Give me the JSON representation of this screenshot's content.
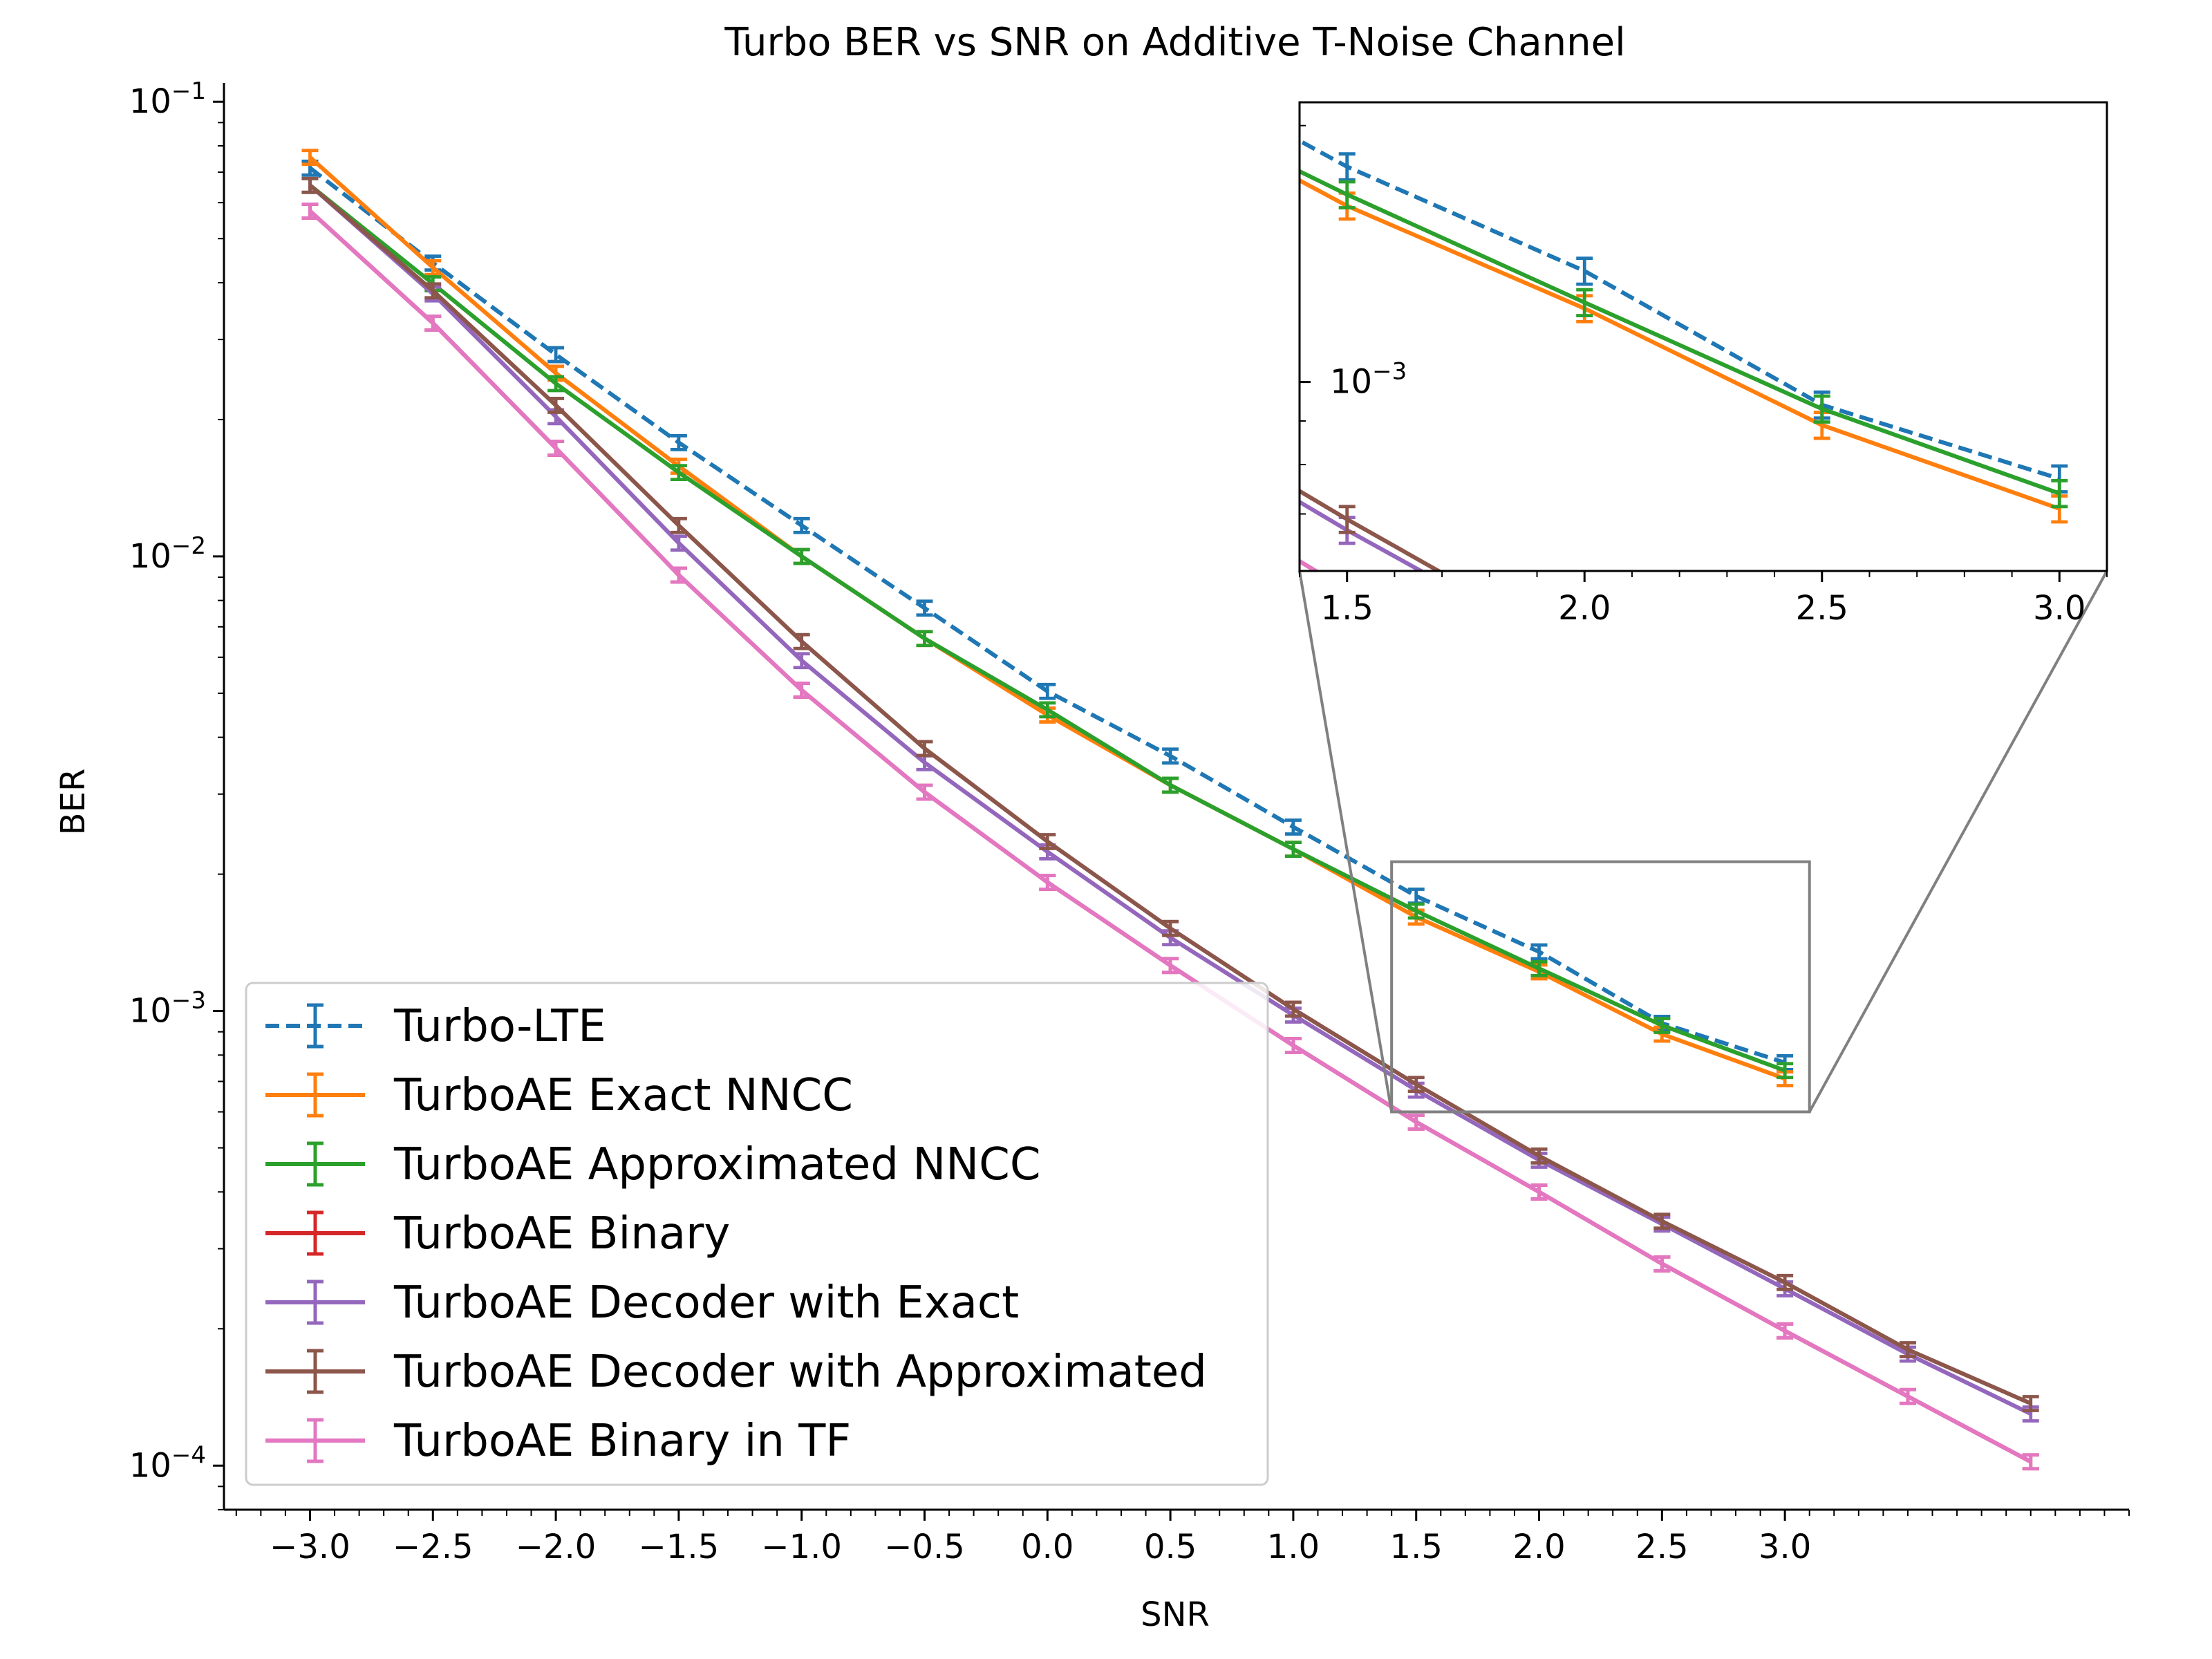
{
  "chart_data": {
    "type": "line",
    "title": "Turbo BER vs SNR on Additive T-Noise Channel",
    "xlabel": "SNR",
    "ylabel": "BER",
    "yscale": "log",
    "xlim": [
      -3.35,
      4.4
    ],
    "ylim": [
      8e-05,
      0.11
    ],
    "x_ticks": [
      -3.0,
      -2.5,
      -2.0,
      -1.5,
      -1.0,
      -0.5,
      0.0,
      0.5,
      1.0,
      1.5,
      2.0,
      2.5,
      3.0
    ],
    "x_tick_labels": [
      "−3.0",
      "−2.5",
      "−2.0",
      "−1.5",
      "−1.0",
      "−0.5",
      "0.0",
      "0.5",
      "1.0",
      "1.5",
      "2.0",
      "2.5",
      "3.0"
    ],
    "y_ticks": [
      0.1,
      0.01,
      0.001,
      0.0001
    ],
    "y_tick_exponents": [
      "−1",
      "−2",
      "−3",
      "−4"
    ],
    "y_tick_base": "10",
    "grid": false,
    "legend_position": "bottom-left",
    "series": [
      {
        "name": "Turbo-LTE",
        "color": "#1f77b4",
        "dashed": true,
        "x": [
          -3.0,
          -2.5,
          -2.0,
          -1.5,
          -1.0,
          -0.5,
          0.0,
          0.5,
          1.0,
          1.5,
          2.0,
          2.5,
          3.0
        ],
        "values": [
          0.0715,
          0.0442,
          0.0278,
          0.0178,
          0.0117,
          0.0077,
          0.00505,
          0.00364,
          0.00254,
          0.00179,
          0.00135,
          0.00094,
          0.00077
        ]
      },
      {
        "name": "TurboAE Exact NNCC",
        "color": "#ff7f0e",
        "dashed": false,
        "x": [
          -3.0,
          -2.5,
          -2.0,
          -1.5,
          -1.0,
          -0.5,
          0.0,
          0.5,
          1.0,
          1.5,
          2.0,
          2.5,
          3.0
        ],
        "values": [
          0.0755,
          0.0432,
          0.0253,
          0.0158,
          0.01,
          0.0066,
          0.00448,
          0.00314,
          0.00227,
          0.00161,
          0.00122,
          0.00089,
          0.00071
        ]
      },
      {
        "name": "TurboAE Approximated NNCC",
        "color": "#2ca02c",
        "dashed": false,
        "x": [
          -3.0,
          -2.5,
          -2.0,
          -1.5,
          -1.0,
          -0.5,
          0.0,
          0.5,
          1.0,
          1.5,
          2.0,
          2.5,
          3.0
        ],
        "values": [
          0.0655,
          0.0398,
          0.024,
          0.0153,
          0.01,
          0.0066,
          0.0046,
          0.00314,
          0.00227,
          0.00166,
          0.00124,
          0.00093,
          0.00074
        ]
      },
      {
        "name": "TurboAE Binary",
        "color": "#d62728",
        "dashed": false,
        "x": [
          -3.0,
          -2.5,
          -2.0,
          -1.5,
          -1.0,
          -0.5,
          0.0,
          0.5,
          1.0,
          1.5,
          2.0,
          2.5,
          3.0,
          3.5,
          4.0
        ],
        "values": [
          0.0575,
          0.0326,
          0.0173,
          0.0091,
          0.00508,
          0.00303,
          0.00192,
          0.00126,
          0.00084,
          0.00057,
          0.0004,
          0.000278,
          0.000198,
          0.000142,
          0.000102
        ]
      },
      {
        "name": "TurboAE Decoder with Exact",
        "color": "#9467bd",
        "dashed": false,
        "x": [
          -3.0,
          -2.5,
          -2.0,
          -1.5,
          -1.0,
          -0.5,
          0.0,
          0.5,
          1.0,
          1.5,
          2.0,
          2.5,
          3.0,
          3.5,
          4.0
        ],
        "values": [
          0.0655,
          0.0378,
          0.0203,
          0.0107,
          0.0059,
          0.00352,
          0.00224,
          0.00145,
          0.00098,
          0.00067,
          0.00047,
          0.00034,
          0.000245,
          0.000176,
          0.00013
        ]
      },
      {
        "name": "TurboAE Decoder with Approximated",
        "color": "#8c564b",
        "dashed": false,
        "x": [
          -3.0,
          -2.5,
          -2.0,
          -1.5,
          -1.0,
          -0.5,
          0.0,
          0.5,
          1.0,
          1.5,
          2.0,
          2.5,
          3.0,
          3.5,
          4.0
        ],
        "values": [
          0.0655,
          0.0384,
          0.0215,
          0.0117,
          0.0065,
          0.00378,
          0.00236,
          0.00152,
          0.00101,
          0.00069,
          0.00048,
          0.000345,
          0.000253,
          0.00018,
          0.000137
        ]
      },
      {
        "name": "TurboAE Binary in TF",
        "color": "#e377c2",
        "dashed": false,
        "x": [
          -3.0,
          -2.5,
          -2.0,
          -1.5,
          -1.0,
          -0.5,
          0.0,
          0.5,
          1.0,
          1.5,
          2.0,
          2.5,
          3.0,
          3.5,
          4.0
        ],
        "values": [
          0.0575,
          0.0326,
          0.0173,
          0.0091,
          0.00508,
          0.00303,
          0.00192,
          0.00126,
          0.00084,
          0.00057,
          0.0004,
          0.000278,
          0.000198,
          0.000142,
          0.000102
        ]
      }
    ],
    "inset": {
      "xlim": [
        1.4,
        3.1
      ],
      "ylim": [
        0.0006,
        0.00213
      ],
      "x_ticks": [
        1.5,
        2.0,
        2.5,
        3.0
      ],
      "x_tick_labels": [
        "1.5",
        "2.0",
        "2.5",
        "3.0"
      ],
      "y_tick_label_base": "10",
      "y_tick_label_exponent": "−3"
    }
  }
}
